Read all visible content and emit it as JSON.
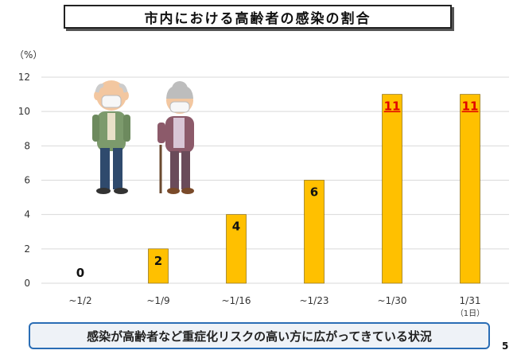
{
  "title": "市内における高齢者の感染の割合",
  "unit_label": "（%）",
  "chart_data": {
    "type": "bar",
    "categories": [
      "~1/2",
      "~1/9",
      "~1/16",
      "~1/23",
      "~1/30",
      "1/31"
    ],
    "category_sublabels": [
      "",
      "",
      "",
      "",
      "",
      "（1日）"
    ],
    "values": [
      0,
      2,
      4,
      6,
      11,
      11
    ],
    "highlight_indices": [
      4,
      5
    ],
    "ylim": [
      0,
      12
    ],
    "yticks": [
      0,
      2,
      4,
      6,
      8,
      10,
      12
    ],
    "bar_color": "#ffc000",
    "highlight_label_color": "#e00000",
    "grid": true
  },
  "footer_text": "感染が高齢者など重症化リスクの高い方に広がってきている状況",
  "page_number": "5"
}
